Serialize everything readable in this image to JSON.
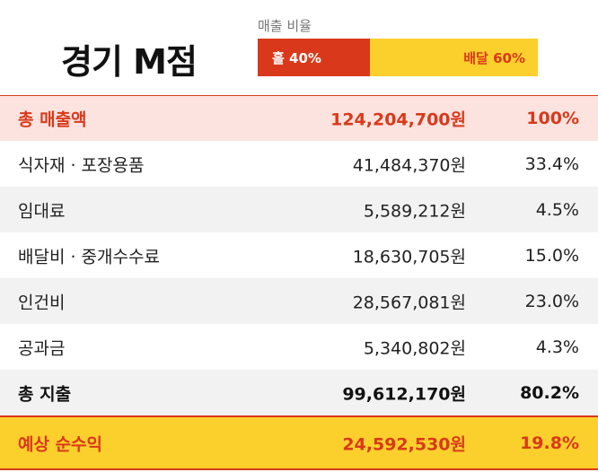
{
  "header": {
    "title": "경기 M점"
  },
  "sales_ratio": {
    "label": "매출 비율",
    "segments": [
      {
        "label": "홀 40%",
        "value": 40
      },
      {
        "label": "배달 60%",
        "value": 60
      }
    ]
  },
  "table": {
    "rows": [
      [
        "총 매출액",
        "124,204,700원",
        "100%"
      ],
      [
        "식자재 · 포장용품",
        "41,484,370원",
        "33.4%"
      ],
      [
        "임대료",
        "5,589,212원",
        "4.5%"
      ],
      [
        "배달비 · 중개수수료",
        "18,630,705원",
        "15.0%"
      ],
      [
        "인건비",
        "28,567,081원",
        "23.0%"
      ],
      [
        "공과금",
        "5,340,802원",
        "4.3%"
      ],
      [
        "총 지출",
        "99,612,170원",
        "80.2%"
      ],
      [
        "예상 순수익",
        "24,592,530원",
        "19.8%"
      ]
    ]
  }
}
